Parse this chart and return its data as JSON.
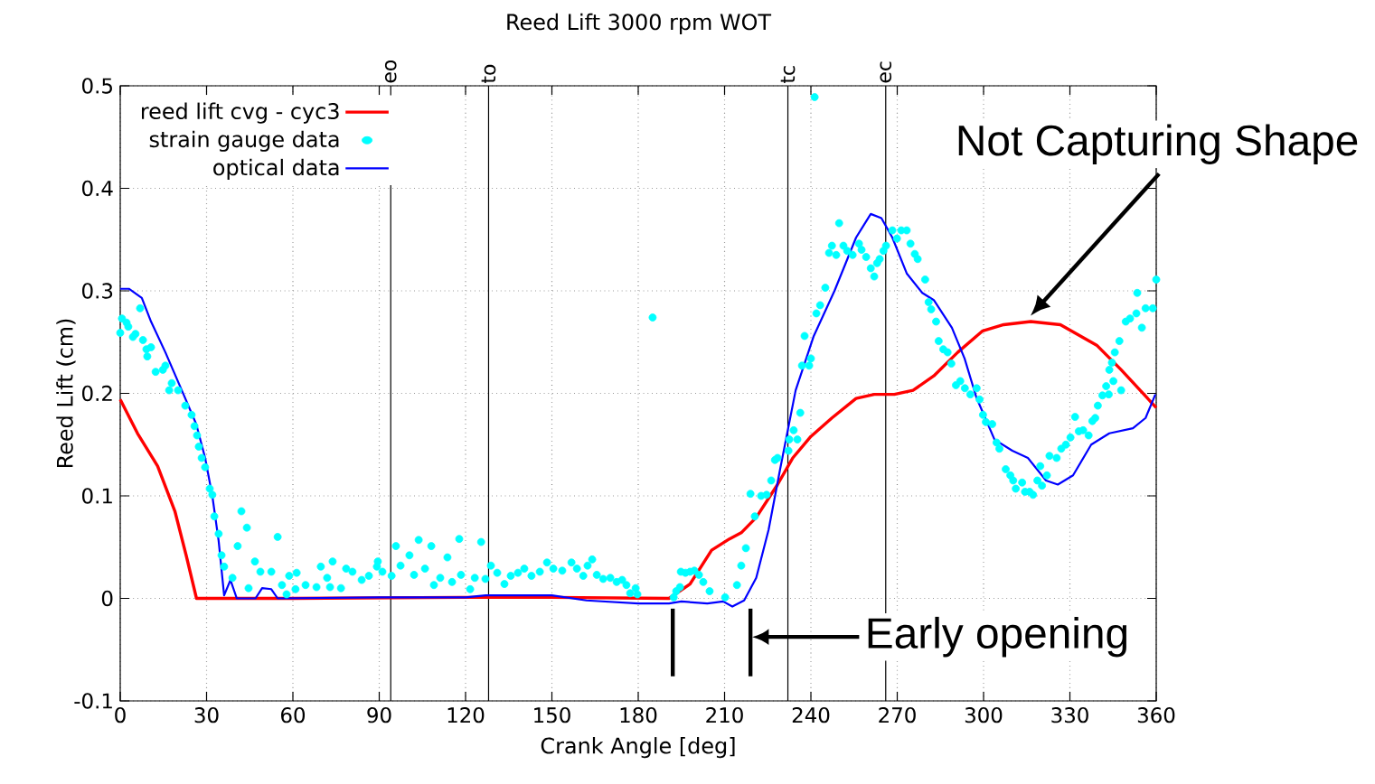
{
  "chart_data": {
    "type": "line",
    "title": "Reed Lift 3000 rpm WOT",
    "xlabel": "Crank Angle [deg]",
    "ylabel": "Reed Lift (cm)",
    "xlim": [
      0,
      360
    ],
    "ylim": [
      -0.1,
      0.5
    ],
    "xticks": [
      0,
      30,
      60,
      90,
      120,
      150,
      180,
      210,
      240,
      270,
      300,
      330,
      360
    ],
    "yticks": [
      -0.1,
      0,
      0.1,
      0.2,
      0.3,
      0.4,
      0.5
    ],
    "grid": true,
    "legend": "top left",
    "series": [
      {
        "name": "reed lift cvg - cyc3",
        "type": "line",
        "color": "#ff0000",
        "marker": "none",
        "x": [
          0,
          6,
          13,
          19,
          23,
          26.5,
          60,
          120,
          150,
          190.7,
          198,
          205.5,
          211.7,
          215.8,
          221,
          228.4,
          233.7,
          240,
          247.3,
          255.7,
          262,
          269,
          275.5,
          282.7,
          291,
          299.7,
          307,
          316.4,
          326.7,
          339.3,
          347.8,
          360
        ],
        "values": [
          0.194,
          0.161,
          0.129,
          0.085,
          0.041,
          0,
          0,
          0.001,
          0.001,
          0,
          0.014,
          0.047,
          0.058,
          0.064,
          0.079,
          0.111,
          0.137,
          0.158,
          0.176,
          0.195,
          0.199,
          0.199,
          0.203,
          0.217,
          0.24,
          0.261,
          0.267,
          0.27,
          0.267,
          0.247,
          0.223,
          0.186
        ]
      },
      {
        "name": "strain gauge data",
        "type": "scatter",
        "color": "#00ffff",
        "marker": "circle",
        "x": [
          0,
          0.6,
          2.2,
          2.8,
          4.4,
          5.3,
          6.9,
          7.9,
          9.1,
          9.4,
          10.7,
          12.3,
          14.8,
          15.7,
          17,
          17.9,
          20.1,
          22.6,
          24.8,
          25.8,
          26.7,
          27.3,
          28.3,
          29.5,
          31.1,
          32,
          32.7,
          34.2,
          35.2,
          36.1,
          39,
          40.8,
          42.1,
          44,
          44.6,
          46.8,
          48.7,
          52.5,
          54.7,
          56.2,
          57.8,
          58.7,
          60.9,
          61.3,
          64.4,
          68.2,
          69.7,
          71.9,
          72.9,
          73.8,
          76.7,
          78.5,
          80.7,
          83.9,
          86.4,
          89.2,
          89.5,
          91.1,
          94.3,
          95.8,
          97.4,
          100.5,
          102.1,
          103.7,
          105.9,
          108.1,
          109,
          111.2,
          113.7,
          115.3,
          117.8,
          118.4,
          121.6,
          123.2,
          125.4,
          126.9,
          128.8,
          131,
          133.5,
          135.7,
          138.2,
          140.4,
          142.9,
          145.8,
          148.3,
          150.5,
          153.6,
          156.8,
          158.7,
          160.9,
          162.4,
          164,
          165.6,
          167.8,
          170.3,
          172.5,
          174.4,
          175.9,
          177.2,
          179.1,
          179.7,
          185,
          192.3,
          193.2,
          194.5,
          194.8,
          196.4,
          198,
          199.5,
          201.1,
          202.6,
          204.8,
          210.2,
          214.3,
          215.8,
          217.4,
          219,
          220.5,
          222.7,
          224.6,
          226.2,
          227.5,
          228.4,
          232.2,
          232.5,
          234,
          235.3,
          236.3,
          236.9,
          237.8,
          239.4,
          240,
          241.3,
          241.9,
          243.2,
          245,
          246.3,
          247.3,
          248.8,
          249.8,
          251.3,
          252.6,
          254.5,
          256.7,
          257.6,
          259.2,
          260.8,
          262,
          263,
          263.9,
          265.2,
          266.1,
          268.3,
          269.9,
          271.4,
          273.3,
          274.6,
          276.1,
          277.1,
          279.7,
          280.9,
          281.8,
          283.5,
          284.4,
          286,
          287.5,
          288.8,
          290.4,
          291.9,
          293.5,
          295.4,
          297.6,
          298.6,
          299.8,
          300.8,
          303,
          304.5,
          305.5,
          307.7,
          309.3,
          310.3,
          311.2,
          313.4,
          314.4,
          316,
          317.2,
          318.7,
          319.7,
          320.3,
          322,
          322.9,
          325.4,
          327,
          328.6,
          330.2,
          331.8,
          333.1,
          334.6,
          336.5,
          337.8,
          338.8,
          339.7,
          341.3,
          342.6,
          343.5,
          343.7,
          344.6,
          345.1,
          345.6,
          347.2,
          347.8,
          349.4,
          350.9,
          353.1,
          353.4,
          355,
          356.3,
          358.8,
          360
        ],
        "values": [
          0.259,
          0.273,
          0.269,
          0.265,
          0.255,
          0.258,
          0.283,
          0.252,
          0.243,
          0.236,
          0.245,
          0.221,
          0.223,
          0.227,
          0.203,
          0.21,
          0.203,
          0.188,
          0.179,
          0.168,
          0.159,
          0.148,
          0.137,
          0.128,
          0.107,
          0.101,
          0.08,
          0.063,
          0.042,
          0.031,
          0.02,
          0.051,
          0.085,
          0.069,
          0.01,
          0.036,
          0.026,
          0.026,
          0.06,
          0.013,
          0.004,
          0.022,
          0.009,
          0.025,
          0.013,
          0.011,
          0.031,
          0.02,
          0.011,
          0.036,
          0.01,
          0.029,
          0.026,
          0.018,
          0.022,
          0.031,
          0.036,
          0.026,
          0.022,
          0.051,
          0.032,
          0.042,
          0.023,
          0.057,
          0.029,
          0.051,
          0.013,
          0.02,
          0.04,
          0.016,
          0.058,
          0.023,
          0.009,
          0.02,
          0.055,
          0.019,
          0.032,
          0.025,
          0.014,
          0.022,
          0.025,
          0.029,
          0.022,
          0.026,
          0.035,
          0.029,
          0.027,
          0.035,
          0.029,
          0.022,
          0.032,
          0.038,
          0.023,
          0.019,
          0.02,
          0.016,
          0.018,
          0.013,
          0.005,
          0.01,
          0.004,
          0.274,
          0.001,
          0.007,
          0.011,
          0.026,
          0.025,
          0.026,
          0.027,
          0.023,
          0.016,
          0.007,
          0.001,
          0.013,
          0.032,
          0.049,
          0.102,
          0.08,
          0.1,
          0.101,
          0.115,
          0.135,
          0.137,
          0.144,
          0.155,
          0.164,
          0.155,
          0.181,
          0.227,
          0.256,
          0.227,
          0.234,
          0.489,
          0.278,
          0.286,
          0.303,
          0.337,
          0.344,
          0.335,
          0.366,
          0.344,
          0.339,
          0.335,
          0.346,
          0.34,
          0.333,
          0.322,
          0.314,
          0.327,
          0.331,
          0.339,
          0.344,
          0.359,
          0.351,
          0.359,
          0.359,
          0.346,
          0.336,
          0.331,
          0.311,
          0.289,
          0.282,
          0.27,
          0.251,
          0.243,
          0.24,
          0.229,
          0.208,
          0.212,
          0.205,
          0.199,
          0.205,
          0.194,
          0.179,
          0.172,
          0.17,
          0.152,
          0.146,
          0.126,
          0.12,
          0.115,
          0.107,
          0.113,
          0.104,
          0.104,
          0.101,
          0.115,
          0.129,
          0.11,
          0.12,
          0.139,
          0.137,
          0.146,
          0.15,
          0.157,
          0.177,
          0.163,
          0.164,
          0.159,
          0.173,
          0.176,
          0.188,
          0.198,
          0.207,
          0.199,
          0.223,
          0.23,
          0.212,
          0.24,
          0.251,
          0.203,
          0.27,
          0.273,
          0.278,
          0.298,
          0.264,
          0.283,
          0.283,
          0.311
        ]
      },
      {
        "name": "optical data",
        "type": "line",
        "color": "#0000ff",
        "marker": "none",
        "x": [
          0,
          3,
          7.5,
          10.7,
          15.7,
          22,
          26.4,
          29.5,
          32,
          34.2,
          36.1,
          38.3,
          40.5,
          47,
          49.3,
          52.5,
          54.7,
          90,
          120,
          127,
          150,
          162,
          180,
          190.7,
          195,
          204,
          209.5,
          212.7,
          216.8,
          221,
          225.3,
          229.3,
          234.7,
          241,
          248.2,
          255.7,
          260.8,
          264.5,
          268.3,
          273.3,
          278.7,
          282.7,
          289,
          293.4,
          297.5,
          303.8,
          310,
          315.4,
          321.7,
          325.8,
          331.1,
          337.4,
          343.7,
          351.9,
          356.3,
          359.7
        ],
        "values": [
          0.302,
          0.302,
          0.293,
          0.27,
          0.24,
          0.199,
          0.17,
          0.137,
          0.1,
          0.056,
          0.003,
          0.018,
          0,
          0,
          0.01,
          0.009,
          0,
          0.001,
          0.001,
          0.003,
          0.003,
          -0.002,
          -0.005,
          -0.005,
          -0.003,
          -0.005,
          -0.003,
          -0.008,
          -0.002,
          0.02,
          0.067,
          0.126,
          0.203,
          0.256,
          0.3,
          0.352,
          0.375,
          0.371,
          0.352,
          0.317,
          0.298,
          0.291,
          0.264,
          0.234,
          0.196,
          0.155,
          0.144,
          0.137,
          0.115,
          0.111,
          0.12,
          0.15,
          0.161,
          0.166,
          0.176,
          0.199
        ]
      }
    ],
    "ref_lines": [
      {
        "axis": "x",
        "value": 94,
        "label": "eo",
        "color": "#000000"
      },
      {
        "axis": "x",
        "value": 128,
        "label": "to",
        "color": "#000000"
      },
      {
        "axis": "x",
        "value": 232,
        "label": "tc",
        "color": "#000000"
      },
      {
        "axis": "x",
        "value": 266,
        "label": "ec",
        "color": "#000000"
      },
      {
        "axis": "x",
        "value": 192,
        "color": "#000000"
      },
      {
        "axis": "x",
        "value": 219,
        "color": "#000000"
      }
    ],
    "annotations": [
      "Not Capturing Shape",
      "Early opening"
    ]
  }
}
